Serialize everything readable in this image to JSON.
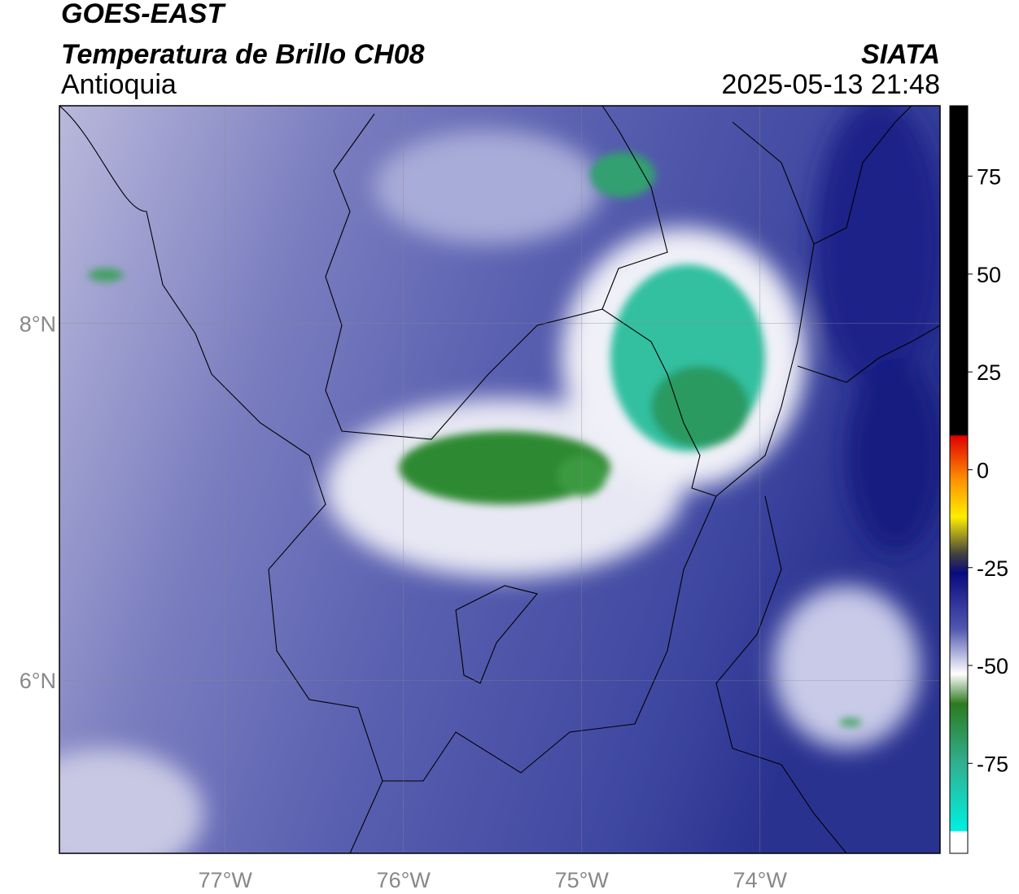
{
  "header": {
    "title": "GOES-EAST",
    "subtitle": "Temperatura de Brillo CH08",
    "source": "SIATA",
    "region": "Antioquia",
    "datetime": "2025-05-13 21:48"
  },
  "map": {
    "xlim": [
      -77.93,
      -72.99
    ],
    "ylim": [
      5.03,
      9.22
    ],
    "xticks": [
      {
        "value": -77,
        "label": "77°W"
      },
      {
        "value": -76,
        "label": "76°W"
      },
      {
        "value": -75,
        "label": "75°W"
      },
      {
        "value": -74,
        "label": "74°W"
      }
    ],
    "yticks": [
      {
        "value": 8,
        "label": "8°N"
      },
      {
        "value": 6,
        "label": "6°N"
      }
    ],
    "grid": true
  },
  "colorbar": {
    "lim": [
      -98,
      93
    ],
    "ticks": [
      75,
      50,
      25,
      0,
      -25,
      -50,
      -75
    ]
  }
}
